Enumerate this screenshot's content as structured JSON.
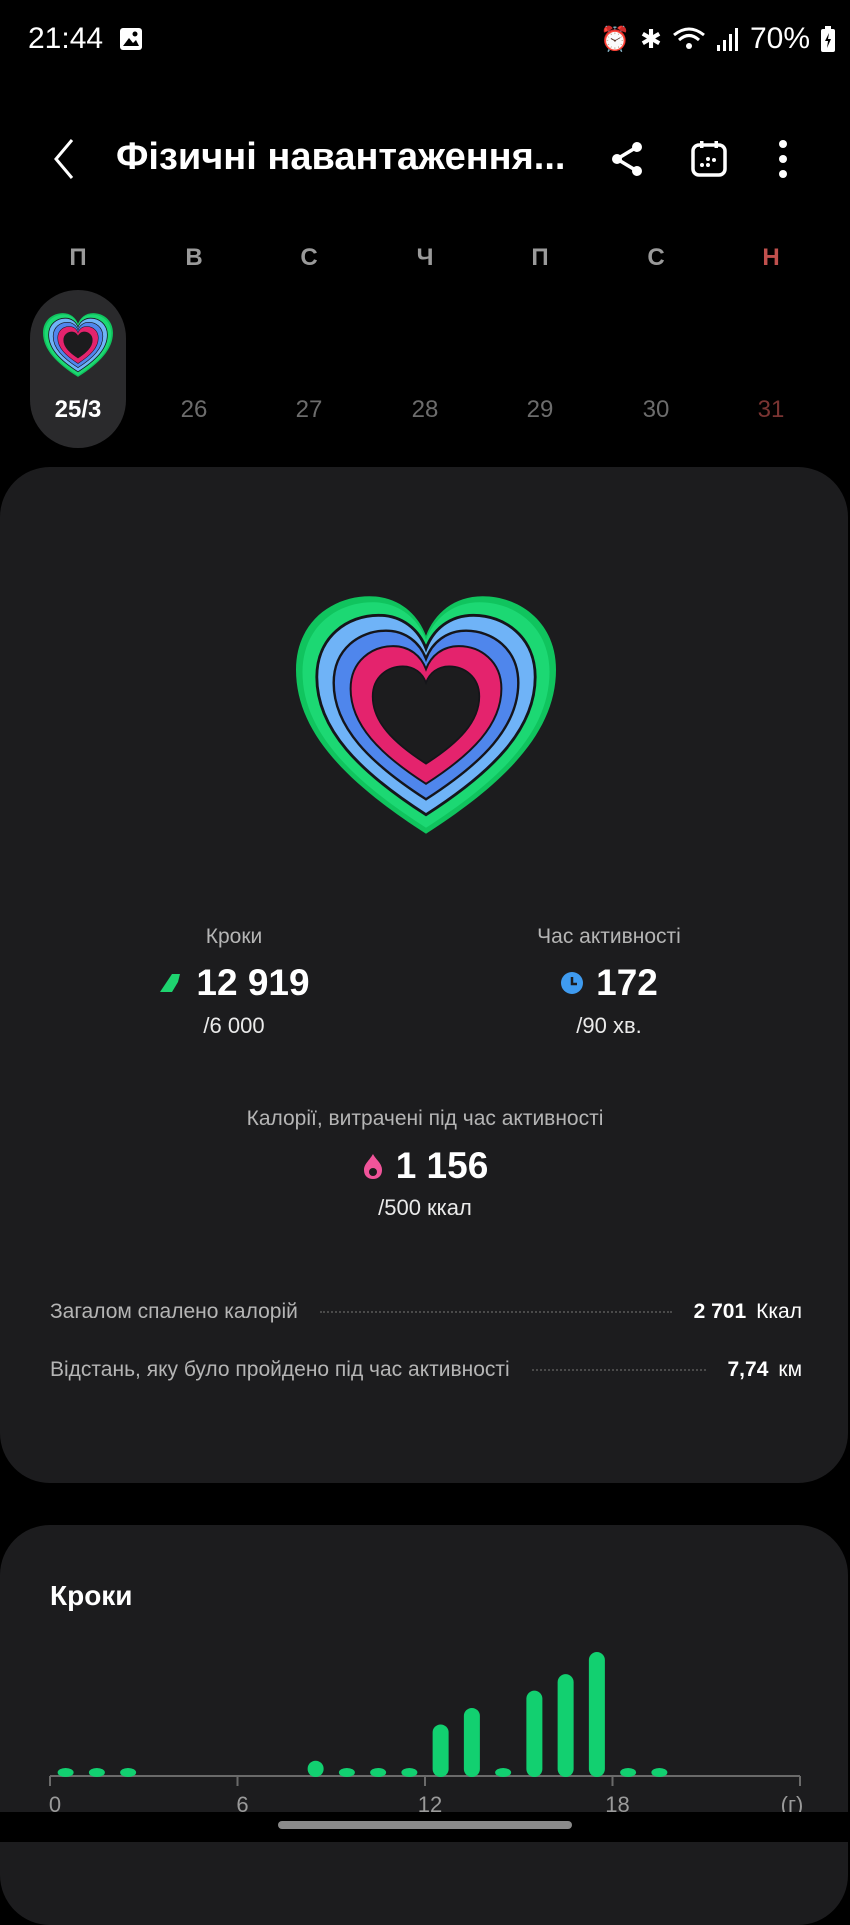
{
  "status_bar": {
    "time": "21:44",
    "battery": "70%",
    "icons": [
      "gallery-icon",
      "alarm-icon",
      "bluetooth-icon",
      "wifi-icon",
      "signal-icon",
      "battery-charging-icon"
    ]
  },
  "header": {
    "title": "Фізичні навантаження...",
    "icons": [
      "back-icon",
      "share-icon",
      "calendar-icon",
      "more-icon"
    ]
  },
  "week": {
    "days": [
      {
        "letter": "П",
        "date": "25/3",
        "selected": true
      },
      {
        "letter": "В",
        "date": "26"
      },
      {
        "letter": "С",
        "date": "27"
      },
      {
        "letter": "Ч",
        "date": "28"
      },
      {
        "letter": "П",
        "date": "29"
      },
      {
        "letter": "С",
        "date": "30"
      },
      {
        "letter": "Н",
        "date": "31",
        "sunday": true
      }
    ]
  },
  "summary": {
    "steps": {
      "label": "Кроки",
      "value": "12 919",
      "goal": "/6 000",
      "color": "#1ed36f"
    },
    "active_time": {
      "label": "Час активності",
      "value": "172",
      "goal": "/90 хв.",
      "color": "#3f9bf0"
    },
    "calories": {
      "label": "Калорії, витрачені під час активності",
      "value": "1 156",
      "goal": "/500 ккал",
      "color": "#f0549a"
    },
    "rows": [
      {
        "label": "Загалом спалено калорій",
        "value": "2 701",
        "unit": "Ккал"
      },
      {
        "label": "Відстань, яку було пройдено під час активності",
        "value": "7,74",
        "unit": "км"
      }
    ]
  },
  "steps_card": {
    "title": "Кроки",
    "chart_data": {
      "type": "bar",
      "x_ticks": [
        "0",
        "6",
        "12",
        "18",
        "(г)"
      ],
      "xlim": [
        0,
        24
      ],
      "hours": [
        0,
        1,
        2,
        8,
        9,
        10,
        11,
        12,
        13,
        14,
        15,
        16,
        17,
        18,
        19
      ],
      "values": [
        200,
        200,
        200,
        380,
        200,
        200,
        200,
        1280,
        1690,
        200,
        2120,
        2530,
        3080,
        200,
        200
      ],
      "color": "#12d070",
      "grid": false
    }
  }
}
